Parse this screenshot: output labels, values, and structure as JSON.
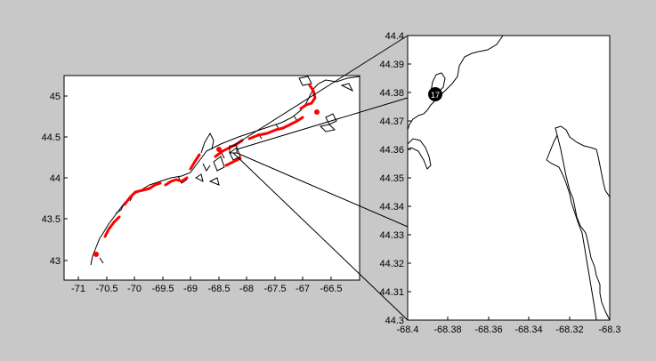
{
  "left_map": {
    "x_ticks": [
      "-71",
      "-70.5",
      "-70",
      "-69.5",
      "-69",
      "-68.5",
      "-68",
      "-67.5",
      "-67",
      "-66.5"
    ],
    "y_ticks": [
      "45",
      "44.5",
      "44",
      "43.5",
      "43"
    ]
  },
  "right_map": {
    "x_ticks": [
      "-68.4",
      "-68.38",
      "-68.36",
      "-68.34",
      "-68.32",
      "-68.3"
    ],
    "y_ticks": [
      "44.4",
      "44.39",
      "44.38",
      "44.37",
      "44.36",
      "44.35",
      "44.34",
      "44.33",
      "44.32",
      "44.31",
      "44.3"
    ],
    "marker_label": "17"
  },
  "colors": {
    "background": "#c8c8c8",
    "plot_bg": "#ffffff",
    "coast": "#000000",
    "sites": "#ff0000"
  }
}
